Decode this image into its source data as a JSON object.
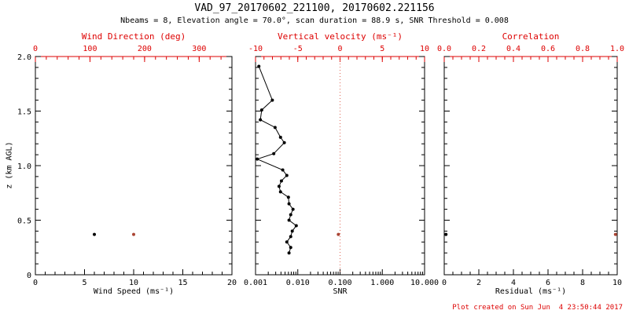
{
  "header": {
    "title": "VAD_97_20170602_221100, 20170602.221156",
    "subtitle": "Nbeams = 8, Elevation angle = 70.0°, scan duration = 88.9 s, SNR Threshold = 0.008"
  },
  "footer": {
    "created": "Plot created on Sun Jun  4 23:50:44 2017"
  },
  "colors": {
    "frame": "#000000",
    "secondary_axis": "#dd0000",
    "marker_red": "#aa4433",
    "refline": "#dd6655"
  },
  "y_axis": {
    "label": "z (km AGL)",
    "lim": [
      0,
      2
    ],
    "ticks": [
      0,
      0.5,
      1.0,
      1.5,
      2.0
    ],
    "tick_labels": [
      "0",
      "0.5",
      "1.0",
      "1.5",
      "2.0"
    ],
    "minor": 0.1
  },
  "chart_data": [
    {
      "name": "wind",
      "type": "scatter",
      "xlabel": "Wind Speed (ms⁻¹)",
      "xlim": [
        0,
        20
      ],
      "xticks": [
        0,
        5,
        10,
        15,
        20
      ],
      "xtick_labels": [
        "0",
        "5",
        "10",
        "15",
        "20"
      ],
      "xminor": 1,
      "x2label": "Wind Direction (deg)",
      "x2lim": [
        0,
        360
      ],
      "x2ticks": [
        0,
        100,
        200,
        300
      ],
      "x2tick_labels": [
        "0",
        "100",
        "200",
        "300"
      ],
      "x2minor": 20,
      "ylim": [
        0,
        2.0
      ],
      "series": [
        {
          "name": "wind-speed",
          "axis": "x",
          "color": "#000000",
          "line": false,
          "points": [
            [
              6.0,
              0.37
            ]
          ]
        },
        {
          "name": "wind-direction",
          "axis": "x2",
          "color": "#aa4433",
          "line": false,
          "points": [
            [
              180,
              0.37
            ]
          ]
        }
      ]
    },
    {
      "name": "snr",
      "type": "line",
      "xlabel": "SNR",
      "xscale": "log",
      "xlim": [
        0.001,
        10
      ],
      "xticks": [
        0.001,
        0.01,
        0.1,
        1,
        10
      ],
      "xtick_labels": [
        "0.001",
        "0.010",
        "0.100",
        "1.000",
        "10.000"
      ],
      "x2label": "Vertical velocity (ms⁻¹)",
      "x2lim": [
        -10,
        10
      ],
      "x2ticks": [
        -10,
        -5,
        0,
        5,
        10
      ],
      "x2tick_labels": [
        "-10",
        "-5",
        "0",
        "5",
        "10"
      ],
      "x2minor": 1,
      "ylim": [
        0,
        2.0
      ],
      "refline": {
        "axis": "x2",
        "value": 0,
        "style": "dotted"
      },
      "series": [
        {
          "name": "snr-profile",
          "axis": "x",
          "color": "#000000",
          "line": true,
          "points": [
            [
              0.0062,
              0.2
            ],
            [
              0.0068,
              0.25
            ],
            [
              0.0055,
              0.3
            ],
            [
              0.0068,
              0.35
            ],
            [
              0.0074,
              0.4
            ],
            [
              0.0092,
              0.45
            ],
            [
              0.0062,
              0.5
            ],
            [
              0.0068,
              0.55
            ],
            [
              0.0077,
              0.6
            ],
            [
              0.0062,
              0.65
            ],
            [
              0.006,
              0.71
            ],
            [
              0.0039,
              0.76
            ],
            [
              0.0036,
              0.81
            ],
            [
              0.0041,
              0.86
            ],
            [
              0.0055,
              0.91
            ],
            [
              0.0044,
              0.96
            ],
            [
              0.0011,
              1.06
            ],
            [
              0.0027,
              1.11
            ],
            [
              0.0048,
              1.21
            ],
            [
              0.0039,
              1.26
            ],
            [
              0.0029,
              1.35
            ],
            [
              0.0013,
              1.42
            ],
            [
              0.0014,
              1.51
            ],
            [
              0.0025,
              1.6
            ],
            [
              0.0012,
              1.91
            ]
          ]
        },
        {
          "name": "vertical-velocity",
          "axis": "x2",
          "color": "#aa4433",
          "line": false,
          "points": [
            [
              -0.2,
              0.37
            ]
          ]
        }
      ]
    },
    {
      "name": "residual",
      "type": "scatter",
      "xlabel": "Residual (ms⁻¹)",
      "xlim": [
        0,
        10
      ],
      "xticks": [
        0,
        2,
        4,
        6,
        8,
        10
      ],
      "xtick_labels": [
        "0",
        "2",
        "4",
        "6",
        "8",
        "10"
      ],
      "xminor": 0.5,
      "x2label": "Correlation",
      "x2lim": [
        0,
        1.0
      ],
      "x2ticks": [
        0,
        0.2,
        0.4,
        0.6,
        0.8,
        1.0
      ],
      "x2tick_labels": [
        "0.0",
        "0.2",
        "0.4",
        "0.6",
        "0.8",
        "1.0"
      ],
      "x2minor": 0.05,
      "ylim": [
        0,
        2.0
      ],
      "series": [
        {
          "name": "residual",
          "axis": "x",
          "color": "#000000",
          "line": false,
          "points": [
            [
              0.1,
              0.37
            ]
          ]
        },
        {
          "name": "correlation",
          "axis": "x2",
          "color": "#aa4433",
          "line": false,
          "points": [
            [
              0.99,
              0.37
            ]
          ]
        }
      ]
    }
  ]
}
